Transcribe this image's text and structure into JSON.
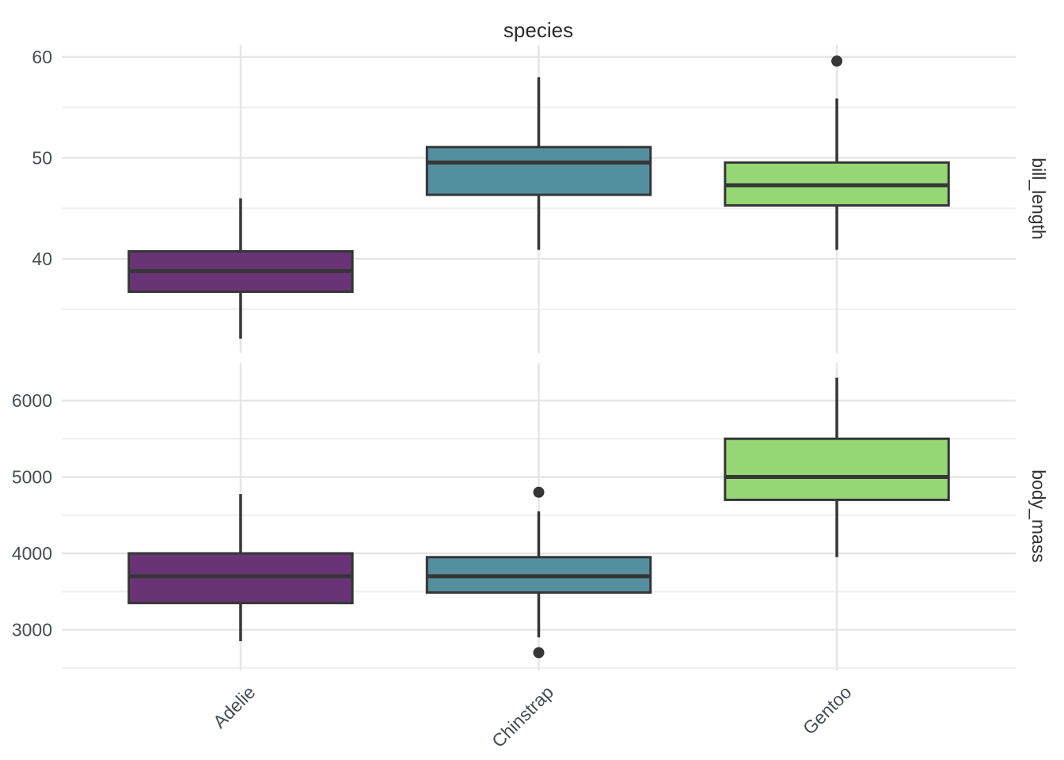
{
  "title": "species",
  "figure": {
    "background": "#ffffff",
    "title_color": "#2b2b2b",
    "tick_text_color": "#454e57",
    "strip_text_color": "#333333",
    "grid_major_color": "#e6e6e6",
    "grid_minor_color": "#f1f1f1",
    "box_stroke_color": "#363636",
    "outlier_color": "#363636"
  },
  "chart_data": {
    "type": "boxplot",
    "title": "species",
    "legend": false,
    "grid": true,
    "facet_layout": "rows, strip labels on right",
    "categories": [
      "Adelie",
      "Chinstrap",
      "Gentoo"
    ],
    "category_colors": {
      "Adelie": "#693476",
      "Chinstrap": "#548fa0",
      "Gentoo": "#95d775"
    },
    "facets": [
      {
        "label": "bill_length",
        "ylim": [
          30.67,
          61.18
        ],
        "major_ticks": [
          40,
          50,
          60
        ],
        "minor_ticks": [
          35,
          45,
          55
        ],
        "boxes": [
          {
            "category": "Adelie",
            "whisker_low": 32.1,
            "q1": 36.75,
            "median": 38.8,
            "q3": 40.75,
            "whisker_high": 46.0,
            "outliers": []
          },
          {
            "category": "Chinstrap",
            "whisker_low": 40.9,
            "q1": 46.35,
            "median": 49.55,
            "q3": 51.08,
            "whisker_high": 58.0,
            "outliers": []
          },
          {
            "category": "Gentoo",
            "whisker_low": 40.9,
            "q1": 45.3,
            "median": 47.3,
            "q3": 49.55,
            "whisker_high": 55.9,
            "outliers": [
              59.6
            ]
          }
        ]
      },
      {
        "label": "body_mass",
        "ylim": [
          2466,
          6497
        ],
        "major_ticks": [
          3000,
          4000,
          5000,
          6000
        ],
        "minor_ticks": [
          2500,
          3500,
          4500,
          5500
        ],
        "boxes": [
          {
            "category": "Adelie",
            "whisker_low": 2850,
            "q1": 3350,
            "median": 3700,
            "q3": 4000,
            "whisker_high": 4775,
            "outliers": []
          },
          {
            "category": "Chinstrap",
            "whisker_low": 2900,
            "q1": 3487.5,
            "median": 3700,
            "q3": 3950,
            "whisker_high": 4550,
            "outliers": [
              4800,
              2700
            ]
          },
          {
            "category": "Gentoo",
            "whisker_low": 3950,
            "q1": 4700,
            "median": 5000,
            "q3": 5500,
            "whisker_high": 6300,
            "outliers": []
          }
        ]
      }
    ]
  }
}
